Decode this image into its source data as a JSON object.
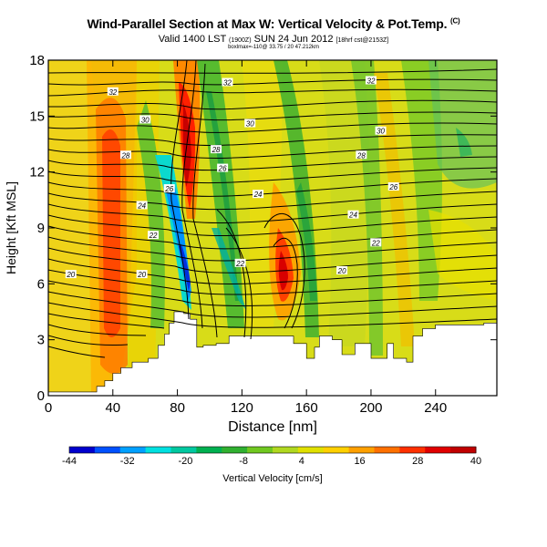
{
  "header": {
    "title": "Wind-Parallel Section at Max W: Vertical Velocity & Pot.Temp.",
    "title_mark": "(C)",
    "valid_line_main": "Valid 1400 LST",
    "valid_line_small1": "(1900Z)",
    "valid_line_date": "SUN 24 Jun 2012",
    "valid_line_small2": "[18hrf cst@2153Z]",
    "subtitle_small": "boxlmax=-110@ 33.75 / 20 47.212km"
  },
  "chart_data": {
    "type": "heatmap",
    "title": "Wind-Parallel Section at Max W: Vertical Velocity & Pot.Temp.",
    "xlabel": "Distance [nm]",
    "ylabel": "Height [Kft MSL]",
    "x_ticks": [
      "0",
      "40",
      "80",
      "120",
      "160",
      "200",
      "240"
    ],
    "y_ticks": [
      "0",
      "3",
      "6",
      "9",
      "12",
      "15",
      "18"
    ],
    "xlim": [
      0,
      278
    ],
    "ylim": [
      0,
      18
    ],
    "colorbar": {
      "label": "Vertical Velocity [cm/s]",
      "tick_labels": [
        "-44",
        "-32",
        "-20",
        "-8",
        "4",
        "16",
        "28",
        "40"
      ],
      "range": [
        -44,
        40
      ],
      "colors": [
        "#0000cd",
        "#0050ff",
        "#00a0ff",
        "#00e0e0",
        "#00c8a0",
        "#00b050",
        "#30b030",
        "#70c820",
        "#b0d820",
        "#e0e000",
        "#ffd000",
        "#ffa000",
        "#ff7000",
        "#ff3000",
        "#e00000",
        "#c00000"
      ]
    },
    "contour_labels": [
      {
        "text": "32",
        "x": 40,
        "y": 16.3
      },
      {
        "text": "32",
        "x": 111,
        "y": 16.8
      },
      {
        "text": "32",
        "x": 200,
        "y": 16.9
      },
      {
        "text": "30",
        "x": 60,
        "y": 14.8
      },
      {
        "text": "30",
        "x": 125,
        "y": 14.6
      },
      {
        "text": "30",
        "x": 206,
        "y": 14.2
      },
      {
        "text": "28",
        "x": 48,
        "y": 12.9
      },
      {
        "text": "28",
        "x": 104,
        "y": 13.2
      },
      {
        "text": "28",
        "x": 194,
        "y": 12.9
      },
      {
        "text": "26",
        "x": 108,
        "y": 12.2
      },
      {
        "text": "26",
        "x": 75,
        "y": 11.1
      },
      {
        "text": "26",
        "x": 214,
        "y": 11.2
      },
      {
        "text": "24",
        "x": 58,
        "y": 10.2
      },
      {
        "text": "24",
        "x": 130,
        "y": 10.8
      },
      {
        "text": "24",
        "x": 189,
        "y": 9.7
      },
      {
        "text": "22",
        "x": 65,
        "y": 8.6
      },
      {
        "text": "22",
        "x": 203,
        "y": 8.2
      },
      {
        "text": "22",
        "x": 119,
        "y": 7.1
      },
      {
        "text": "20",
        "x": 14,
        "y": 6.5
      },
      {
        "text": "20",
        "x": 58,
        "y": 6.5
      },
      {
        "text": "20",
        "x": 182,
        "y": 6.7
      }
    ],
    "terrain": {
      "x": [
        0,
        30,
        35,
        40,
        45,
        52,
        62,
        68,
        72,
        75,
        78,
        84,
        88,
        92,
        96,
        104,
        112,
        150,
        152,
        160,
        165,
        168,
        176,
        182,
        190,
        200,
        210,
        214,
        222,
        226,
        232,
        240,
        260,
        270,
        278
      ],
      "height": [
        0.2,
        0.5,
        0.8,
        1.2,
        1.5,
        1.8,
        2.0,
        2.7,
        3.3,
        3.9,
        4.5,
        4.4,
        4.1,
        2.6,
        2.7,
        2.8,
        3.2,
        3.2,
        2.8,
        2.0,
        2.6,
        3.2,
        3.0,
        2.2,
        2.8,
        2.0,
        2.8,
        2.0,
        1.8,
        3.2,
        3.6,
        3.8,
        3.8,
        3.9,
        4.0
      ]
    }
  }
}
